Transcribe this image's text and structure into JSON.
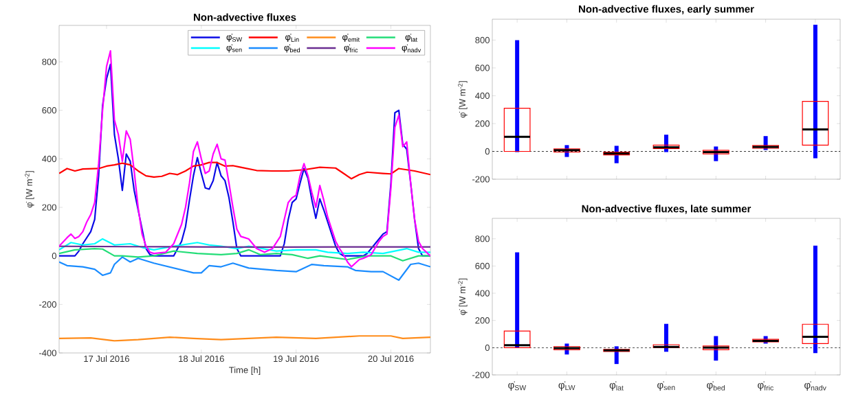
{
  "chart_data": [
    {
      "type": "line",
      "title": "Non-advective fluxes",
      "xlabel": "Time [h]",
      "ylabel": "φ̇ [W m$^{-2}$]",
      "xlim": [
        "2016-07-16T12:00",
        "2016-07-20T10:00"
      ],
      "ylim": [
        -400,
        950
      ],
      "xticks": [
        {
          "value": "2016-07-17",
          "label": "17 Jul 2016"
        },
        {
          "value": "2016-07-18",
          "label": "18 Jul 2016"
        },
        {
          "value": "2016-07-19",
          "label": "19 Jul 2016"
        },
        {
          "value": "2016-07-20",
          "label": "20 Jul 2016"
        }
      ],
      "yticks": [
        -400,
        -200,
        0,
        200,
        400,
        600,
        800
      ],
      "legend": "top right",
      "series": [
        {
          "name": "φ̇$_{SW}$",
          "color": "#0a0ae6",
          "x": [
            "2016-07-16T12:00",
            "2016-07-16T16:00",
            "2016-07-16T17:00",
            "2016-07-16T18:00",
            "2016-07-16T20:00",
            "2016-07-16T21:00",
            "2016-07-16T22:00",
            "2016-07-16T23:00",
            "2016-07-17T00:00",
            "2016-07-17T01:00",
            "2016-07-17T02:00",
            "2016-07-17T03:00",
            "2016-07-17T04:00",
            "2016-07-17T05:00",
            "2016-07-17T06:00",
            "2016-07-17T07:00",
            "2016-07-17T08:00",
            "2016-07-17T09:00",
            "2016-07-17T10:00",
            "2016-07-17T11:00",
            "2016-07-17T12:00",
            "2016-07-17T17:00",
            "2016-07-17T18:00",
            "2016-07-17T19:00",
            "2016-07-17T20:00",
            "2016-07-17T21:00",
            "2016-07-17T22:00",
            "2016-07-17T23:00",
            "2016-07-18T00:00",
            "2016-07-18T01:00",
            "2016-07-18T02:00",
            "2016-07-18T03:00",
            "2016-07-18T04:00",
            "2016-07-18T05:00",
            "2016-07-18T06:00",
            "2016-07-18T07:00",
            "2016-07-18T08:00",
            "2016-07-18T09:00",
            "2016-07-18T10:00",
            "2016-07-18T20:00",
            "2016-07-18T21:00",
            "2016-07-18T22:00",
            "2016-07-18T23:00",
            "2016-07-19T00:00",
            "2016-07-19T01:00",
            "2016-07-19T02:00",
            "2016-07-19T03:00",
            "2016-07-19T04:00",
            "2016-07-19T05:00",
            "2016-07-19T06:00",
            "2016-07-19T07:00",
            "2016-07-19T08:00",
            "2016-07-19T09:00",
            "2016-07-19T10:00",
            "2016-07-19T11:00",
            "2016-07-19T12:00",
            "2016-07-19T17:00",
            "2016-07-19T18:00",
            "2016-07-19T20:00",
            "2016-07-19T21:00",
            "2016-07-19T22:00",
            "2016-07-19T23:00",
            "2016-07-20T00:00",
            "2016-07-20T01:00",
            "2016-07-20T02:00",
            "2016-07-20T03:00",
            "2016-07-20T04:00",
            "2016-07-20T05:00",
            "2016-07-20T06:00",
            "2016-07-20T07:00",
            "2016-07-20T08:00",
            "2016-07-20T10:00"
          ],
          "values": [
            0,
            0,
            20,
            50,
            100,
            150,
            330,
            620,
            730,
            790,
            500,
            400,
            270,
            420,
            390,
            270,
            190,
            110,
            30,
            5,
            0,
            0,
            30,
            60,
            120,
            230,
            330,
            405,
            340,
            280,
            275,
            310,
            385,
            330,
            310,
            240,
            140,
            30,
            0,
            0,
            50,
            150,
            220,
            235,
            300,
            360,
            320,
            230,
            155,
            235,
            190,
            140,
            90,
            40,
            10,
            0,
            0,
            10,
            50,
            70,
            90,
            100,
            300,
            590,
            600,
            460,
            440,
            300,
            150,
            30,
            0,
            0
          ]
        },
        {
          "name": "φ̇$_{Lin}$",
          "color": "#ff0000",
          "x": [
            "2016-07-16T12:00",
            "2016-07-16T14:00",
            "2016-07-16T16:00",
            "2016-07-16T18:00",
            "2016-07-16T22:00",
            "2016-07-17T00:00",
            "2016-07-17T02:00",
            "2016-07-17T04:00",
            "2016-07-17T06:00",
            "2016-07-17T08:00",
            "2016-07-17T10:00",
            "2016-07-17T12:00",
            "2016-07-17T14:00",
            "2016-07-17T16:00",
            "2016-07-17T18:00",
            "2016-07-17T20:00",
            "2016-07-17T22:00",
            "2016-07-18T00:00",
            "2016-07-18T02:00",
            "2016-07-18T04:00",
            "2016-07-18T06:00",
            "2016-07-18T08:00",
            "2016-07-18T10:00",
            "2016-07-18T14:00",
            "2016-07-18T18:00",
            "2016-07-18T22:00",
            "2016-07-19T02:00",
            "2016-07-19T06:00",
            "2016-07-19T10:00",
            "2016-07-19T12:00",
            "2016-07-19T14:00",
            "2016-07-19T16:00",
            "2016-07-19T18:00",
            "2016-07-19T22:00",
            "2016-07-20T00:00",
            "2016-07-20T02:00",
            "2016-07-20T04:00",
            "2016-07-20T06:00",
            "2016-07-20T10:00"
          ],
          "values": [
            340,
            360,
            350,
            358,
            360,
            370,
            375,
            382,
            375,
            350,
            330,
            325,
            328,
            340,
            335,
            350,
            370,
            375,
            385,
            385,
            370,
            372,
            365,
            352,
            350,
            350,
            355,
            365,
            362,
            340,
            318,
            335,
            345,
            340,
            338,
            360,
            355,
            350,
            335
          ]
        },
        {
          "name": "φ̇$_{emit}$",
          "color": "#ff8c1a",
          "x": [
            "2016-07-16T12:00",
            "2016-07-16T20:00",
            "2016-07-17T02:00",
            "2016-07-17T08:00",
            "2016-07-17T16:00",
            "2016-07-17T22:00",
            "2016-07-18T05:00",
            "2016-07-18T19:00",
            "2016-07-19T05:00",
            "2016-07-19T16:00",
            "2016-07-20T00:00",
            "2016-07-20T03:00",
            "2016-07-20T10:00"
          ],
          "values": [
            -340,
            -338,
            -350,
            -345,
            -335,
            -340,
            -345,
            -335,
            -340,
            -330,
            -330,
            -340,
            -335
          ]
        },
        {
          "name": "φ̇$_{lat}$",
          "color": "#22dd77",
          "x": [
            "2016-07-16T12:00",
            "2016-07-16T16:00",
            "2016-07-16T21:00",
            "2016-07-16T23:00",
            "2016-07-17T02:00",
            "2016-07-17T04:00",
            "2016-07-17T08:00",
            "2016-07-17T12:00",
            "2016-07-17T17:00",
            "2016-07-17T23:00",
            "2016-07-18T05:00",
            "2016-07-18T09:00",
            "2016-07-18T12:00",
            "2016-07-18T15:00",
            "2016-07-18T19:00",
            "2016-07-18T23:00",
            "2016-07-19T03:00",
            "2016-07-19T06:00",
            "2016-07-19T13:00",
            "2016-07-19T18:00",
            "2016-07-20T00:00",
            "2016-07-20T03:00",
            "2016-07-20T07:00",
            "2016-07-20T10:00"
          ],
          "values": [
            10,
            25,
            30,
            28,
            0,
            0,
            -5,
            0,
            20,
            10,
            5,
            10,
            25,
            5,
            10,
            5,
            -10,
            0,
            -15,
            0,
            0,
            -20,
            0,
            0
          ]
        },
        {
          "name": "φ̇$_{sen}$",
          "color": "#00ffff",
          "x": [
            "2016-07-16T12:00",
            "2016-07-16T15:00",
            "2016-07-16T18:00",
            "2016-07-16T21:00",
            "2016-07-16T23:00",
            "2016-07-17T02:00",
            "2016-07-17T06:00",
            "2016-07-17T09:00",
            "2016-07-17T12:00",
            "2016-07-17T17:00",
            "2016-07-17T23:00",
            "2016-07-18T02:00",
            "2016-07-18T05:00",
            "2016-07-18T09:00",
            "2016-07-18T12:00",
            "2016-07-18T19:00",
            "2016-07-19T00:00",
            "2016-07-19T05:00",
            "2016-07-19T08:00",
            "2016-07-19T13:00",
            "2016-07-19T17:00",
            "2016-07-19T22:00",
            "2016-07-20T04:00",
            "2016-07-20T07:00",
            "2016-07-20T10:00"
          ],
          "values": [
            25,
            55,
            45,
            50,
            70,
            45,
            50,
            35,
            25,
            40,
            55,
            45,
            40,
            30,
            40,
            20,
            25,
            25,
            15,
            10,
            15,
            10,
            30,
            15,
            15
          ]
        },
        {
          "name": "φ̇$_{bed}$",
          "color": "#1a8cff",
          "x": [
            "2016-07-16T12:00",
            "2016-07-16T14:00",
            "2016-07-16T18:00",
            "2016-07-16T21:00",
            "2016-07-16T23:00",
            "2016-07-17T01:00",
            "2016-07-17T02:00",
            "2016-07-17T04:00",
            "2016-07-17T06:00",
            "2016-07-17T08:00",
            "2016-07-17T12:00",
            "2016-07-17T17:00",
            "2016-07-17T22:00",
            "2016-07-18T00:00",
            "2016-07-18T02:00",
            "2016-07-18T05:00",
            "2016-07-18T08:00",
            "2016-07-18T12:00",
            "2016-07-18T19:00",
            "2016-07-19T00:00",
            "2016-07-19T04:00",
            "2016-07-19T07:00",
            "2016-07-19T13:00",
            "2016-07-19T15:00",
            "2016-07-19T19:00",
            "2016-07-19T22:00",
            "2016-07-20T02:00",
            "2016-07-20T05:00",
            "2016-07-20T07:00",
            "2016-07-20T10:00"
          ],
          "values": [
            -25,
            -40,
            -45,
            -55,
            -80,
            -70,
            -35,
            -5,
            -25,
            -10,
            -30,
            -50,
            -70,
            -70,
            -40,
            -45,
            -30,
            -50,
            -60,
            -65,
            -35,
            -40,
            -45,
            -60,
            -65,
            -65,
            -100,
            -35,
            -30,
            -45
          ]
        },
        {
          "name": "φ̇$_{fric}$",
          "color": "#6a2c91",
          "x": [
            "2016-07-16T12:00",
            "2016-07-17T06:00",
            "2016-07-18T00:00",
            "2016-07-18T18:00",
            "2016-07-19T12:00",
            "2016-07-20T10:00"
          ],
          "values": [
            40,
            38,
            37,
            36,
            37,
            37
          ]
        },
        {
          "name": "φ̇$_{nadv}$",
          "color": "#ff00ff",
          "x": [
            "2016-07-16T12:00",
            "2016-07-16T14:00",
            "2016-07-16T15:00",
            "2016-07-16T16:00",
            "2016-07-16T17:00",
            "2016-07-16T18:00",
            "2016-07-16T19:00",
            "2016-07-16T20:00",
            "2016-07-16T21:00",
            "2016-07-16T22:00",
            "2016-07-16T23:00",
            "2016-07-17T00:00",
            "2016-07-17T01:00",
            "2016-07-17T02:00",
            "2016-07-17T03:00",
            "2016-07-17T04:00",
            "2016-07-17T05:00",
            "2016-07-17T06:00",
            "2016-07-17T07:00",
            "2016-07-17T08:00",
            "2016-07-17T09:00",
            "2016-07-17T10:00",
            "2016-07-17T11:00",
            "2016-07-17T12:00",
            "2016-07-17T15:00",
            "2016-07-17T17:00",
            "2016-07-17T19:00",
            "2016-07-17T20:00",
            "2016-07-17T21:00",
            "2016-07-17T22:00",
            "2016-07-17T23:00",
            "2016-07-18T00:00",
            "2016-07-18T01:00",
            "2016-07-18T02:00",
            "2016-07-18T03:00",
            "2016-07-18T04:00",
            "2016-07-18T05:00",
            "2016-07-18T06:00",
            "2016-07-18T07:00",
            "2016-07-18T08:00",
            "2016-07-18T09:00",
            "2016-07-18T10:00",
            "2016-07-18T11:00",
            "2016-07-18T12:00",
            "2016-07-18T13:00",
            "2016-07-18T14:00",
            "2016-07-18T16:00",
            "2016-07-18T18:00",
            "2016-07-18T20:00",
            "2016-07-18T21:00",
            "2016-07-18T22:00",
            "2016-07-18T23:00",
            "2016-07-19T00:00",
            "2016-07-19T01:00",
            "2016-07-19T02:00",
            "2016-07-19T03:00",
            "2016-07-19T04:00",
            "2016-07-19T05:00",
            "2016-07-19T06:00",
            "2016-07-19T07:00",
            "2016-07-19T08:00",
            "2016-07-19T09:00",
            "2016-07-19T10:00",
            "2016-07-19T11:00",
            "2016-07-19T12:00",
            "2016-07-19T13:00",
            "2016-07-19T14:00",
            "2016-07-19T15:00",
            "2016-07-19T16:00",
            "2016-07-19T17:00",
            "2016-07-19T19:00",
            "2016-07-19T21:00",
            "2016-07-19T22:00",
            "2016-07-19T23:00",
            "2016-07-20T00:00",
            "2016-07-20T01:00",
            "2016-07-20T02:00",
            "2016-07-20T03:00",
            "2016-07-20T04:00",
            "2016-07-20T05:00",
            "2016-07-20T06:00",
            "2016-07-20T07:00",
            "2016-07-20T08:00",
            "2016-07-20T10:00"
          ],
          "values": [
            40,
            75,
            90,
            72,
            80,
            100,
            140,
            170,
            220,
            380,
            600,
            780,
            845,
            560,
            500,
            390,
            515,
            480,
            350,
            200,
            90,
            40,
            15,
            10,
            15,
            50,
            130,
            200,
            300,
            430,
            470,
            400,
            340,
            350,
            420,
            460,
            400,
            395,
            300,
            200,
            110,
            80,
            75,
            70,
            50,
            30,
            15,
            30,
            80,
            150,
            220,
            240,
            250,
            330,
            380,
            330,
            260,
            200,
            290,
            230,
            160,
            110,
            60,
            30,
            5,
            -25,
            -45,
            -30,
            -15,
            -10,
            5,
            60,
            80,
            90,
            280,
            530,
            580,
            450,
            470,
            300,
            150,
            60,
            30,
            0
          ]
        }
      ]
    },
    {
      "type": "box",
      "title": "Non-advective fluxes, early summer",
      "ylabel": "φ̇ [W m$^{-2}$]",
      "categories": [
        null,
        null,
        null,
        null,
        null,
        null,
        null
      ],
      "tick_labels": "y",
      "ylim": [
        -200,
        950
      ],
      "yticks": [
        -200,
        0,
        200,
        400,
        600,
        800
      ],
      "ref_lines": [
        {
          "axis": "y",
          "value": 0,
          "color": "#000000",
          "line_style": "dashed"
        }
      ],
      "boxes": [
        {
          "low": -5,
          "q1": 0,
          "median": 105,
          "q3": 310,
          "high": 800
        },
        {
          "low": -40,
          "q1": -5,
          "median": 8,
          "q3": 18,
          "high": 45
        },
        {
          "low": -85,
          "q1": -25,
          "median": -15,
          "q3": -5,
          "high": 40
        },
        {
          "low": -5,
          "q1": 20,
          "median": 30,
          "q3": 45,
          "high": 120
        },
        {
          "low": -70,
          "q1": -18,
          "median": -5,
          "q3": 8,
          "high": 35
        },
        {
          "low": 10,
          "q1": 22,
          "median": 32,
          "q3": 42,
          "high": 110
        },
        {
          "low": -50,
          "q1": 45,
          "median": 158,
          "q3": 360,
          "high": 910
        }
      ]
    },
    {
      "type": "box",
      "title": "Non-advective fluxes, late summer",
      "ylabel": "φ̇ [W m$^{-2}$]",
      "categories": [
        "φ̇$_{SW}$",
        "φ̇$_{LW}$",
        "φ̇$_{lat}$",
        "φ̇$_{sen}$",
        "φ̇$_{bed}$",
        "φ̇$_{fric}$",
        "φ̇$_{nadv}$"
      ],
      "ylim": [
        -200,
        950
      ],
      "yticks": [
        -200,
        0,
        200,
        400,
        600,
        800
      ],
      "ref_lines": [
        {
          "axis": "y",
          "value": 0,
          "color": "#000000",
          "line_style": "dashed"
        }
      ],
      "boxes": [
        {
          "low": 0,
          "q1": 0,
          "median": 18,
          "q3": 122,
          "high": 700
        },
        {
          "low": -50,
          "q1": -15,
          "median": -3,
          "q3": 8,
          "high": 30
        },
        {
          "low": -120,
          "q1": -28,
          "median": -20,
          "q3": -12,
          "high": 10
        },
        {
          "low": -30,
          "q1": 0,
          "median": 5,
          "q3": 22,
          "high": 175
        },
        {
          "low": -95,
          "q1": -15,
          "median": 0,
          "q3": 12,
          "high": 85
        },
        {
          "low": 30,
          "q1": 42,
          "median": 50,
          "q3": 62,
          "high": 85
        },
        {
          "low": -40,
          "q1": 30,
          "median": 80,
          "q3": 172,
          "high": 750
        }
      ]
    }
  ]
}
